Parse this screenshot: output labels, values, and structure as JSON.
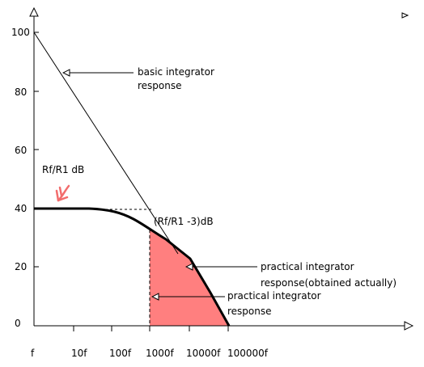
{
  "chart_data": {
    "type": "line",
    "title": "",
    "xlabel": "",
    "ylabel": "",
    "x_tick_labels": [
      "f",
      "10f",
      "100f",
      "1000f",
      "10000f",
      "100000f"
    ],
    "y_tick_labels": [
      "0",
      "20",
      "40",
      "60",
      "80",
      "100"
    ],
    "ylim": [
      0,
      100
    ],
    "series": [
      {
        "name": "basic integrator response",
        "x": [
          "f",
          "1000f"
        ],
        "y": [
          100,
          40
        ]
      },
      {
        "name": "practical integrator response(obtained actually)",
        "x": [
          "f",
          "10f",
          "100f",
          "1000f",
          "10000f",
          "100000f"
        ],
        "y": [
          40,
          40,
          39,
          34,
          20,
          0
        ]
      }
    ],
    "annotations": {
      "basic_label_1": "basic integrator",
      "basic_label_2": "response",
      "rf_label": "Rf/R1 dB",
      "minus3_label": "(Rf/R1 -3)dB",
      "practical_label_1": "practical integrator",
      "practical_label_2": "response(obtained actually)",
      "shaded_label_1": "practical integrator",
      "shaded_label_2": "response"
    },
    "colors": {
      "shaded_region": "#ff7f7f",
      "arrow": "#f26d6d",
      "line": "#000000"
    },
    "grid": false
  }
}
